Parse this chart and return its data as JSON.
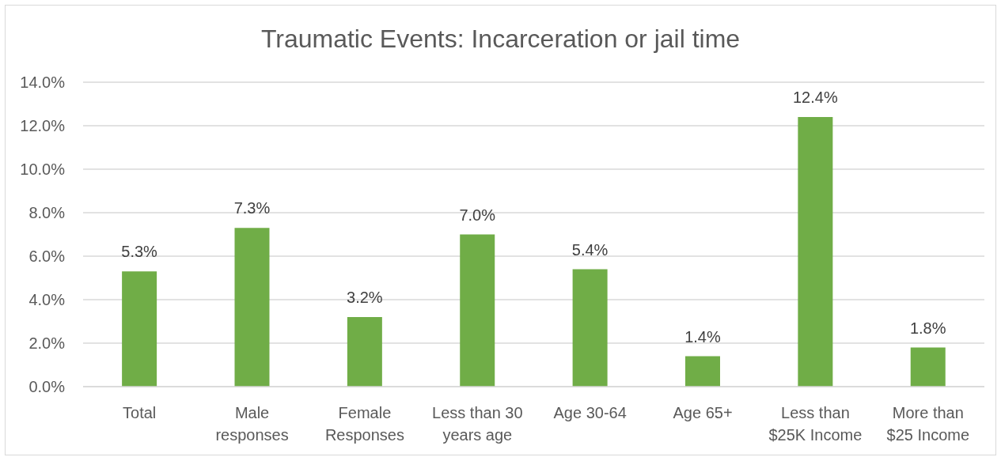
{
  "chart_data": {
    "type": "bar",
    "title": "Traumatic Events: Incarceration or jail time",
    "categories": [
      "Total",
      "Male responses",
      "Female Responses",
      "Less than 30 years age",
      "Age 30-64",
      "Age 65+",
      "Less than $25K Income",
      "More than $25 Income"
    ],
    "values": [
      5.3,
      7.3,
      3.2,
      7.0,
      5.4,
      1.4,
      12.4,
      1.8
    ],
    "value_labels": [
      "5.3%",
      "7.3%",
      "3.2%",
      "7.0%",
      "5.4%",
      "1.4%",
      "12.4%",
      "1.8%"
    ],
    "color": "#70ad47",
    "ylim": [
      0,
      14
    ],
    "yticks": [
      {
        "value": 0,
        "label": "0.0%"
      },
      {
        "value": 2,
        "label": "2.0%"
      },
      {
        "value": 4,
        "label": "4.0%"
      },
      {
        "value": 6,
        "label": "6.0%"
      },
      {
        "value": 8,
        "label": "8.0%"
      },
      {
        "value": 10,
        "label": "10.0%"
      },
      {
        "value": 12,
        "label": "12.0%"
      },
      {
        "value": 14,
        "label": "14.0%"
      }
    ],
    "grid": "y"
  }
}
